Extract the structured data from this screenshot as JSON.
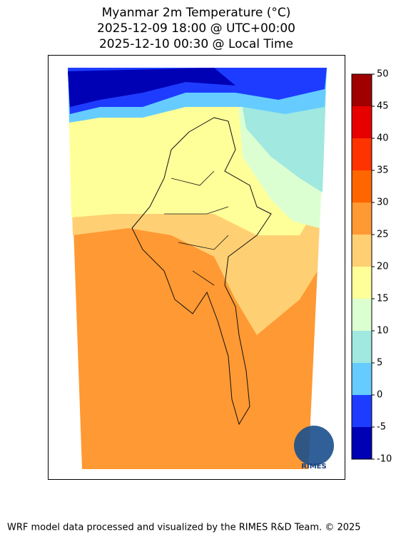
{
  "title": [
    "Myanmar 2m Temperature (°C)",
    "2025-12-09 18:00 @ UTC+00:00",
    "2025-12-10 00:30 @ Local Time"
  ],
  "colorbar": {
    "ticks": [
      -10,
      -5,
      0,
      5,
      10,
      15,
      20,
      25,
      30,
      35,
      40,
      45,
      50
    ],
    "colors": [
      "#0000b4",
      "#1e3cff",
      "#66ccff",
      "#a0e8e0",
      "#dcffd2",
      "#ffff99",
      "#ffd073",
      "#ff9933",
      "#ff6600",
      "#ff3300",
      "#e60000",
      "#a00000"
    ]
  },
  "logo": "RIMES",
  "footer": "WRF model data processed and visualized by the RIMES R&D Team. © 2025"
}
